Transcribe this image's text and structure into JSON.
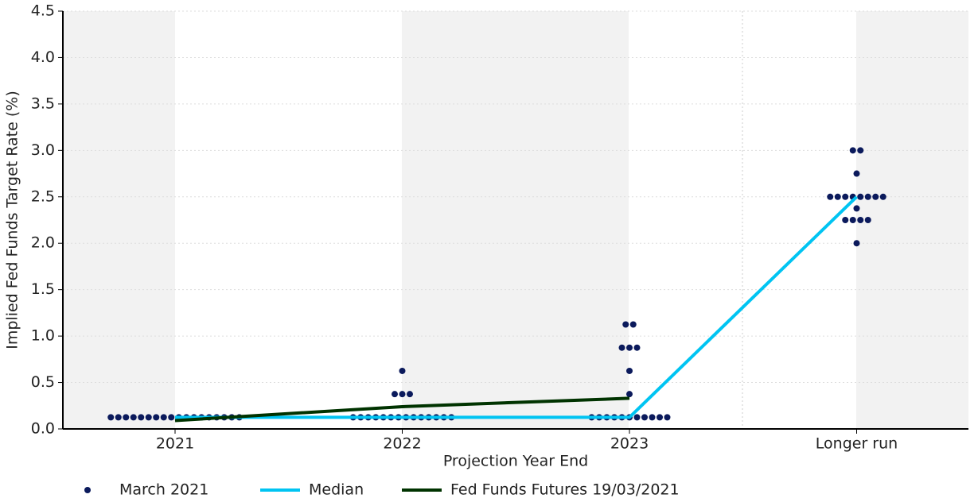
{
  "chart_data": {
    "type": "dot_plot",
    "x_label": "Projection Year End",
    "y_label": "Implied Fed Funds Target Rate (%)",
    "categories": [
      "2021",
      "2022",
      "2023",
      "Longer run"
    ],
    "ylim": [
      0,
      4.5
    ],
    "yticks": [
      {
        "value": 0,
        "label": "0.0"
      },
      0.5,
      {
        "value": 1,
        "label": "1.0"
      },
      1.5,
      {
        "value": 2,
        "label": "2.0"
      },
      2.5,
      {
        "value": 3,
        "label": "3.0"
      },
      3.5,
      {
        "value": 4,
        "label": "4.0"
      },
      4.5
    ],
    "grid": true,
    "legend": "bottom",
    "series": [
      {
        "name": "March 2021",
        "color": "#0b1a5c",
        "kind": "dots",
        "values": [
          [
            0.125,
            0.125,
            0.125,
            0.125,
            0.125,
            0.125,
            0.125,
            0.125,
            0.125,
            0.125,
            0.125,
            0.125,
            0.125,
            0.125,
            0.125,
            0.125,
            0.125,
            0.125
          ],
          [
            0.125,
            0.125,
            0.125,
            0.125,
            0.125,
            0.125,
            0.125,
            0.125,
            0.125,
            0.125,
            0.125,
            0.125,
            0.125,
            0.125,
            0.375,
            0.375,
            0.375,
            0.625
          ],
          [
            0.125,
            0.125,
            0.125,
            0.125,
            0.125,
            0.125,
            0.125,
            0.125,
            0.125,
            0.125,
            0.125,
            0.375,
            0.625,
            0.875,
            0.875,
            0.875,
            1.125,
            1.125
          ],
          [
            2,
            2.25,
            2.25,
            2.25,
            2.25,
            2.375,
            2.5,
            2.5,
            2.5,
            2.5,
            2.5,
            2.5,
            2.5,
            2.5,
            2.75,
            3,
            3
          ]
        ]
      },
      {
        "name": "Median",
        "color": "#00c4f2",
        "kind": "line",
        "values": [
          0.125,
          0.125,
          0.125,
          2.5
        ]
      },
      {
        "name": "Fed Funds Futures 19/03/2021",
        "color": "#003300",
        "kind": "line",
        "values": [
          0.09,
          0.24,
          0.33,
          null
        ]
      }
    ]
  }
}
